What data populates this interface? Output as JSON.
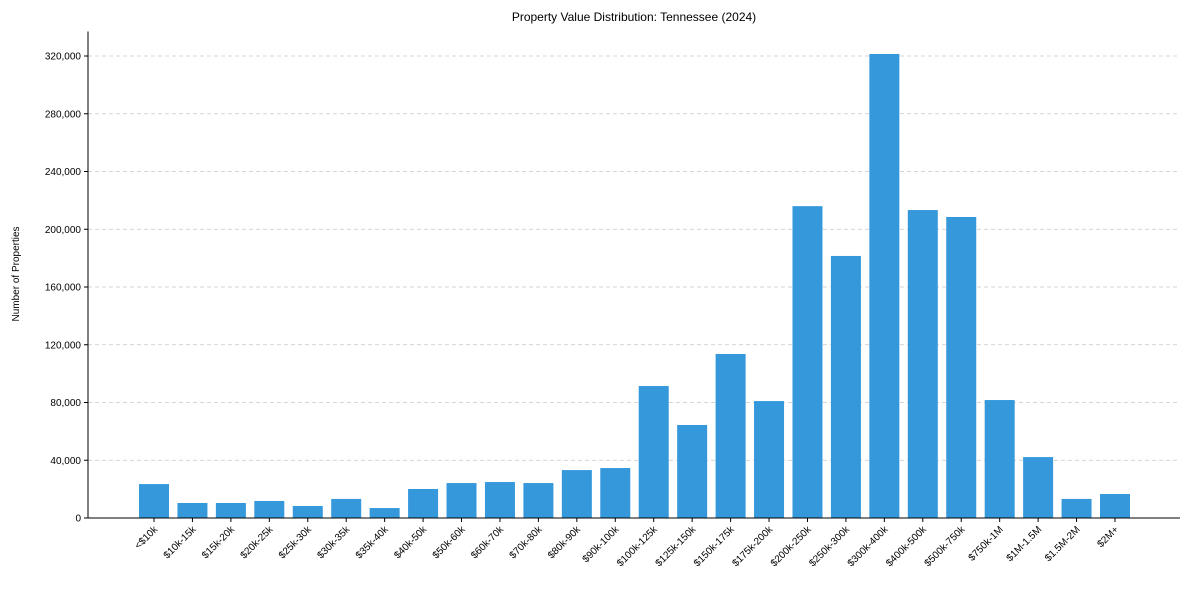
{
  "chart_data": {
    "type": "bar",
    "title": "Property Value Distribution: Tennessee (2024)",
    "xlabel": "",
    "ylabel": "Number of Properties",
    "ylim": [
      0,
      337000
    ],
    "yticks": [
      0,
      40000,
      80000,
      120000,
      160000,
      200000,
      240000,
      280000,
      320000
    ],
    "ytick_labels": [
      "0",
      "40,000",
      "80,000",
      "120,000",
      "160,000",
      "200,000",
      "240,000",
      "280,000",
      "320,000"
    ],
    "grid": "y-dashed",
    "bar_color": "#3498db",
    "categories": [
      "<$10k",
      "$10k-15k",
      "$15k-20k",
      "$20k-25k",
      "$25k-30k",
      "$30k-35k",
      "$35k-40k",
      "$40k-50k",
      "$50k-60k",
      "$60k-70k",
      "$70k-80k",
      "$80k-90k",
      "$90k-100k",
      "$100k-125k",
      "$125k-150k",
      "$150k-175k",
      "$175k-200k",
      "$200k-250k",
      "$250k-300k",
      "$300k-400k",
      "$400k-500k",
      "$500k-750k",
      "$750k-1M",
      "$1M-1.5M",
      "$1.5M-2M",
      "$2M+"
    ],
    "values": [
      23500,
      10400,
      10400,
      11800,
      8300,
      13200,
      6900,
      20100,
      24200,
      24900,
      24200,
      33200,
      34600,
      91400,
      64400,
      113600,
      81000,
      216000,
      181500,
      321400,
      213300,
      208500,
      81700,
      42200,
      13200,
      16600
    ]
  }
}
